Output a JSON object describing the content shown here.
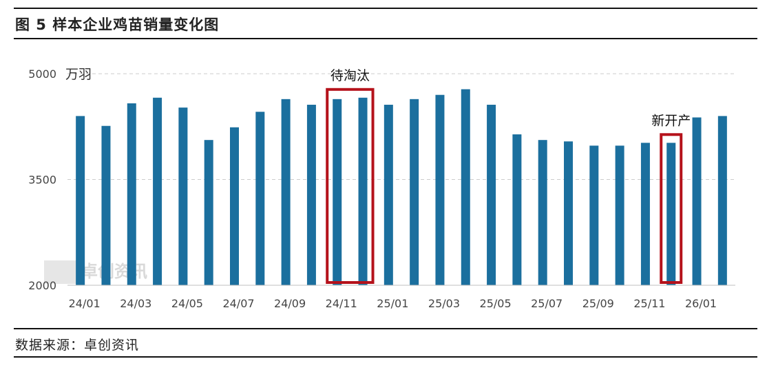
{
  "figure_title": "图 5  样本企业鸡苗销量变化图",
  "source": "数据来源：卓创资讯",
  "watermark": "卓创资讯",
  "colors": {
    "bar": "#1b6f9e",
    "highlight": "#b5121b",
    "grid": "#cccccc"
  },
  "chart_data": {
    "type": "bar",
    "unit": "万羽",
    "ylim": [
      2000,
      5000
    ],
    "yticks": [
      2000,
      3500,
      5000
    ],
    "grid": true,
    "categories": [
      "24/01",
      "24/02",
      "24/03",
      "24/04",
      "24/05",
      "24/06",
      "24/07",
      "24/08",
      "24/09",
      "24/10",
      "24/11",
      "24/12",
      "25/01",
      "25/02",
      "25/03",
      "25/04",
      "25/05",
      "25/06",
      "25/07",
      "25/08",
      "25/09",
      "25/10",
      "25/11",
      "25/12",
      "26/01",
      "26/02"
    ],
    "xtick_labels": [
      "24/01",
      "24/03",
      "24/05",
      "24/07",
      "24/09",
      "24/11",
      "25/01",
      "25/03",
      "25/05",
      "25/07",
      "25/09",
      "25/11",
      "26/01"
    ],
    "values": [
      4400,
      4260,
      4580,
      4660,
      4520,
      4060,
      4240,
      4460,
      4640,
      4560,
      4640,
      4660,
      4560,
      4640,
      4700,
      4780,
      4560,
      4140,
      4060,
      4040,
      3980,
      3980,
      4020,
      4020,
      4380,
      4400
    ],
    "annotations": [
      {
        "text": "待淘汰",
        "from": "24/11",
        "to": "24/12"
      },
      {
        "text": "新开产",
        "from": "25/12",
        "to": "25/12"
      }
    ]
  }
}
